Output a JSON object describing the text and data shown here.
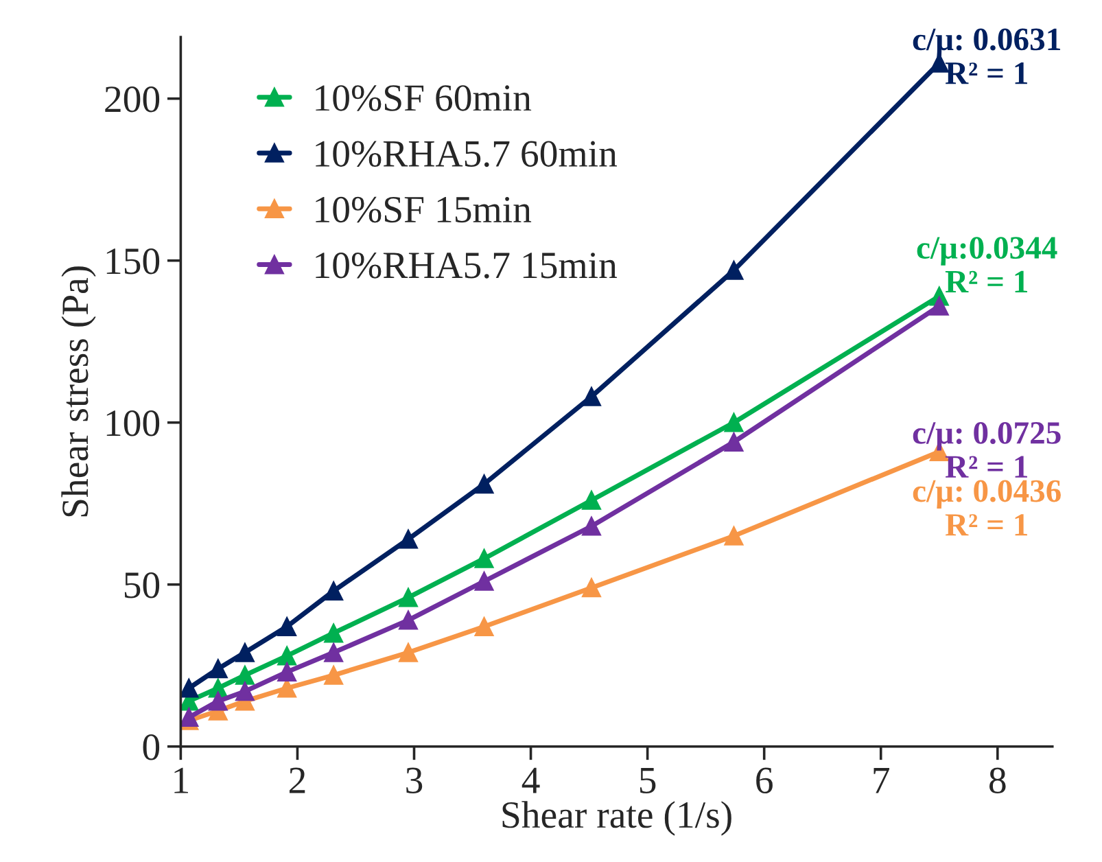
{
  "chart_data": {
    "type": "line",
    "xlabel": "Shear rate (1/s)",
    "ylabel": "Shear stress (Pa)",
    "x": [
      1.07,
      1.32,
      1.55,
      1.91,
      2.31,
      2.95,
      3.6,
      4.52,
      5.74,
      7.5
    ],
    "series": [
      {
        "name": "10%SF 60min",
        "color": "#00b050",
        "values": [
          14,
          18,
          22,
          28,
          35,
          46,
          58,
          76,
          100,
          139
        ]
      },
      {
        "name": "10%RHA5.7 60min",
        "color": "#002060",
        "values": [
          18,
          24,
          29,
          37,
          48,
          64,
          81,
          108,
          147,
          211
        ]
      },
      {
        "name": "10%SF 15min",
        "color": "#f79646",
        "values": [
          8,
          11,
          14,
          18,
          22,
          29,
          37,
          49,
          65,
          91
        ]
      },
      {
        "name": "10%RHA5.7 15min",
        "color": "#7030a0",
        "values": [
          9,
          14,
          17,
          23,
          29,
          39,
          51,
          68,
          94,
          136
        ]
      }
    ],
    "marker": "triangle",
    "line_style": "solid",
    "xlim": [
      1,
      8.47
    ],
    "xticks": [
      1,
      2,
      3,
      4,
      5,
      6,
      7,
      8
    ],
    "ylim": [
      0,
      219
    ],
    "yticks": [
      0,
      50,
      100,
      150,
      200
    ],
    "grid": false,
    "legend": "top left",
    "annotations": [
      "c/μ:0.0344\nR² = 1",
      "c/μ: 0.0631\nR² = 1",
      "c/μ: 0.0436\nR² = 1",
      "c/μ: 0.0725\nR² = 1"
    ]
  }
}
